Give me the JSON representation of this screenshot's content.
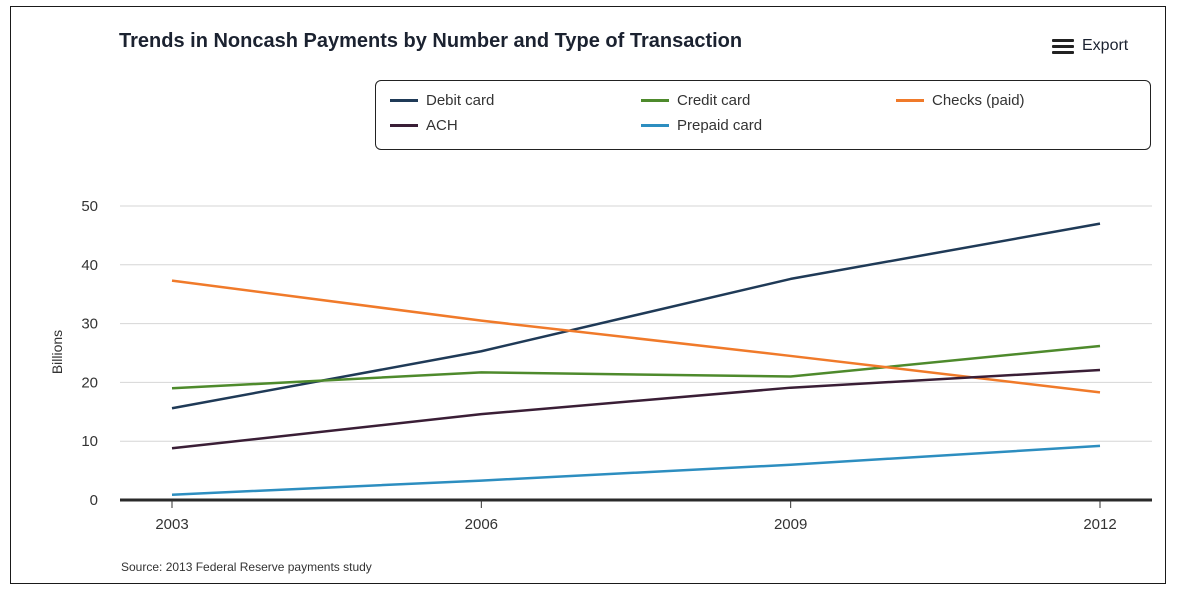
{
  "export_label": "Export",
  "source": "Source: 2013 Federal Reserve payments study",
  "colors": {
    "Debit card": "#1f3a57",
    "Credit card": "#4e8a2c",
    "Checks (paid)": "#f07a2a",
    "ACH": "#3a1e36",
    "Prepaid card": "#2d8ec0",
    "grid": "#d6d6d6",
    "axis": "#333333"
  },
  "chart_data": {
    "type": "line",
    "title": "Trends in Noncash Payments by Number and Type of Transaction",
    "xlabel": "",
    "ylabel": "Billions",
    "x": [
      "2003",
      "2006",
      "2009",
      "2012"
    ],
    "ylim": [
      0,
      50
    ],
    "yticks": [
      0,
      10,
      20,
      30,
      40,
      50
    ],
    "grid": true,
    "legend_position": "top",
    "series": [
      {
        "name": "Debit card",
        "values": [
          15.6,
          25.3,
          37.6,
          47.0
        ]
      },
      {
        "name": "Credit card",
        "values": [
          19.0,
          21.7,
          21.0,
          26.2
        ]
      },
      {
        "name": "Checks (paid)",
        "values": [
          37.3,
          30.5,
          24.5,
          18.3
        ]
      },
      {
        "name": "ACH",
        "values": [
          8.8,
          14.6,
          19.1,
          22.1
        ]
      },
      {
        "name": "Prepaid card",
        "values": [
          0.9,
          3.3,
          6.0,
          9.2
        ]
      }
    ]
  }
}
